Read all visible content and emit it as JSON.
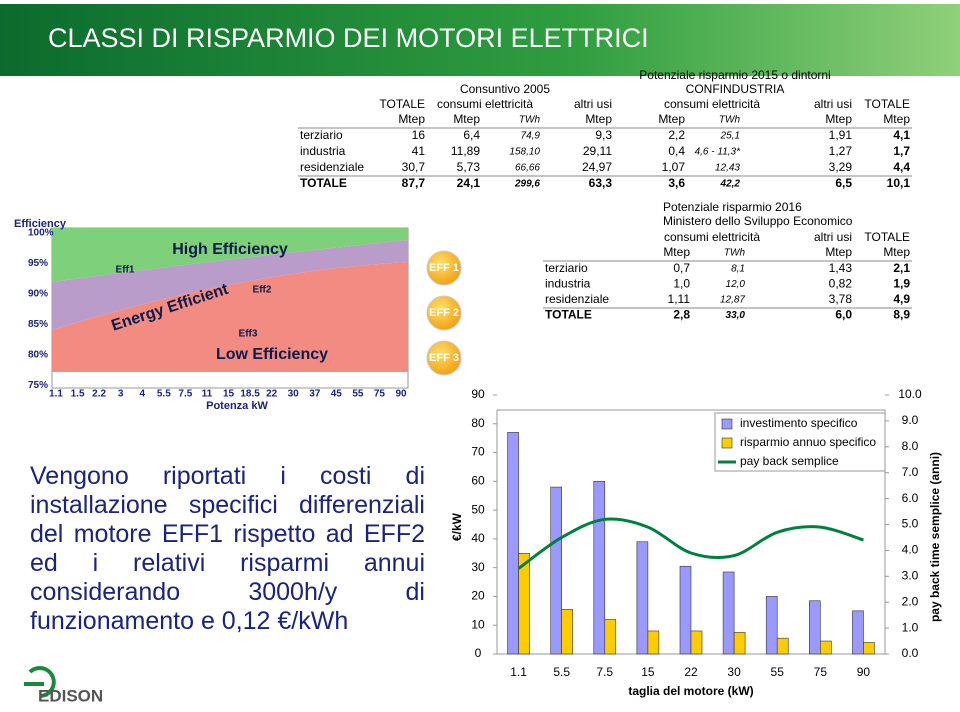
{
  "header": {
    "title": "CLASSI DI RISPARMIO DEI MOTORI ELETTRICI"
  },
  "table1": {
    "group_left": "Consuntivo 2005",
    "group_right": [
      "Potenziale risparmio 2015 o dintorni",
      "CONFINDUSTRIA"
    ],
    "headers": [
      "TOTALE",
      "consumi elettricità",
      "altri usi",
      "consumi elettricità",
      "altri usi",
      "TOTALE"
    ],
    "units": [
      "Mtep",
      "Mtep",
      "TWh",
      "Mtep",
      "Mtep",
      "TWh",
      "Mtep",
      "Mtep"
    ],
    "rows": [
      [
        "terziario",
        "16",
        "6,4",
        "74,9",
        "9,3",
        "2,2",
        "25,1",
        "1,91",
        "4,1"
      ],
      [
        "industria",
        "41",
        "11,89",
        "158,10",
        "29,11",
        "0,4",
        "4,6 - 11,3*",
        "1,27",
        "1,7"
      ],
      [
        "residenziale",
        "30,7",
        "5,73",
        "66,66",
        "24,97",
        "1,07",
        "12,43",
        "3,29",
        "4,4"
      ],
      [
        "TOTALE",
        "87,7",
        "24,1",
        "299,6",
        "63,3",
        "3,6",
        "42,2",
        "6,5",
        "10,1"
      ]
    ]
  },
  "efficiency_figure": {
    "y_title": "Efficiency",
    "yticks": [
      "100%",
      "95%",
      "90%",
      "85%",
      "80%",
      "75%"
    ],
    "xticks": [
      "1.1",
      "1.5",
      "2.2",
      "3",
      "4",
      "5.5",
      "7.5",
      "11",
      "15",
      "18.5",
      "22",
      "30",
      "37",
      "45",
      "55",
      "75",
      "90"
    ],
    "x_title": "Potenza kW",
    "regions": [
      "High Efficiency",
      "Energy Efficient",
      "Low Efficiency"
    ],
    "classes": [
      "Eff1",
      "Eff2",
      "Eff3"
    ]
  },
  "badges": [
    "EFF 1",
    "EFF 2",
    "EFF 3"
  ],
  "table2": {
    "title": [
      "Potenziale risparmio 2016",
      "Ministero dello Sviluppo Economico"
    ],
    "headers": [
      "consumi elettricità",
      "altri usi",
      "TOTALE"
    ],
    "units": [
      "Mtep",
      "TWh",
      "Mtep",
      "Mtep"
    ],
    "rows": [
      [
        "terziario",
        "0,7",
        "8,1",
        "1,43",
        "2,1"
      ],
      [
        "industria",
        "1,0",
        "12,0",
        "0,82",
        "1,9"
      ],
      [
        "residenziale",
        "1,11",
        "12,87",
        "3,78",
        "4,9"
      ],
      [
        "TOTALE",
        "2,8",
        "33,0",
        "6,0",
        "8,9"
      ]
    ]
  },
  "description": "Vengono riportati i costi di installazione specifici differenziali del motore EFF1 rispetto ad EFF2 ed i relativi risparmi annui considerando 3000h/y di funzionamento e 0,12 €/kWh",
  "chart_data": {
    "type": "bar",
    "categories": [
      "1.1",
      "5.5",
      "7.5",
      "15",
      "22",
      "30",
      "55",
      "75",
      "90"
    ],
    "series": [
      {
        "name": "investimento specifico",
        "color": "#9999ff",
        "values": [
          77,
          58,
          60,
          39,
          30.5,
          28.5,
          20,
          18.5,
          15
        ]
      },
      {
        "name": "risparmio annuo specifico",
        "color": "#ffcc00",
        "values": [
          35,
          15.5,
          12,
          8,
          8,
          7.5,
          5.5,
          4.5,
          4
        ]
      },
      {
        "name": "pay back semplice",
        "type": "line",
        "axis": "y2",
        "color": "#008040",
        "values": [
          3.3,
          4.5,
          5.2,
          4.9,
          3.9,
          3.8,
          4.7,
          4.9,
          4.4
        ]
      }
    ],
    "ylim": [
      0,
      90
    ],
    "yticks": [
      0,
      10,
      20,
      30,
      40,
      50,
      60,
      70,
      80,
      90
    ],
    "y2lim": [
      0,
      10
    ],
    "y2ticks": [
      {
        "value": 0,
        "label": "0.0"
      },
      {
        "value": 1,
        "label": "1.0"
      },
      {
        "value": 2,
        "label": "2.0"
      },
      {
        "value": 3,
        "label": "3.0"
      },
      {
        "value": 4,
        "label": "4.0"
      },
      {
        "value": 5,
        "label": "5.0"
      },
      {
        "value": 6,
        "label": "6.0"
      },
      {
        "value": 7,
        "label": "7.0"
      },
      {
        "value": 8,
        "label": "8.0"
      },
      {
        "value": 9,
        "label": "9.0"
      },
      {
        "value": 10,
        "label": "10.0"
      }
    ],
    "ylabel": "€/kW",
    "y2label": "pay back time semplice (anni)",
    "xlabel": "taglia del motore (kW)",
    "grid": false
  },
  "logo": "EDISON"
}
